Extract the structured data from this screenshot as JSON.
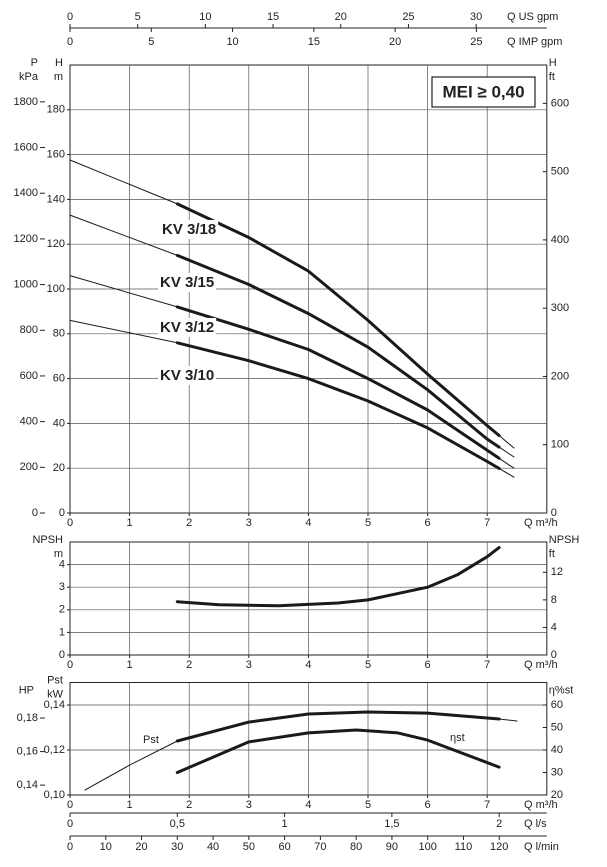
{
  "chart_data": [
    {
      "type": "line",
      "x_label": "Q m³/h",
      "xlim": [
        0,
        8
      ],
      "xticks": [
        0,
        1,
        2,
        3,
        4,
        5,
        6,
        7
      ],
      "y_label": [
        "H",
        "m"
      ],
      "ylim": [
        0,
        200
      ],
      "yticks": [
        0,
        20,
        40,
        60,
        80,
        100,
        120,
        140,
        160,
        180
      ],
      "outer_axis": {
        "label": [
          "P",
          "kPa"
        ],
        "ylim": [
          0,
          1961.3
        ],
        "yticks": [
          0,
          200,
          400,
          600,
          800,
          1000,
          1200,
          1400,
          1600,
          1800
        ]
      },
      "y2_label": [
        "H",
        "ft"
      ],
      "y2lim": [
        0,
        656.2
      ],
      "y2ticks": [
        0,
        100,
        200,
        300,
        400,
        500,
        600
      ],
      "top_axes": [
        {
          "label": "Q US gpm",
          "xlim": [
            0,
            35.22
          ],
          "xticks": [
            0,
            5,
            10,
            15,
            20,
            25,
            30
          ]
        },
        {
          "label": "Q IMP gpm",
          "xlim": [
            0,
            29.33
          ],
          "xticks": [
            0,
            5,
            10,
            15,
            20,
            25
          ]
        }
      ],
      "annotation": "MEI ≥ 0,40",
      "grid": true,
      "series": [
        {
          "name": "KV 3/18",
          "color": "#1a1a1a",
          "x": [
            0,
            1.8,
            3,
            4,
            5,
            6,
            7,
            7.2,
            7.45
          ],
          "values": [
            157.6,
            138,
            123,
            108,
            86,
            62,
            39,
            34.6,
            29
          ]
        },
        {
          "name": "KV 3/15",
          "color": "#1a1a1a",
          "x": [
            0,
            1.8,
            3,
            4,
            5,
            6,
            7,
            7.2,
            7.45
          ],
          "values": [
            133,
            115,
            102,
            89,
            74,
            55,
            33,
            29.4,
            25
          ]
        },
        {
          "name": "KV 3/12",
          "color": "#1a1a1a",
          "x": [
            0,
            1.8,
            3,
            4,
            5,
            6,
            7,
            7.2,
            7.45
          ],
          "values": [
            106,
            92,
            82,
            73,
            60,
            46,
            28,
            24.4,
            20
          ]
        },
        {
          "name": "KV 3/10",
          "color": "#1a1a1a",
          "x": [
            0,
            1.8,
            3,
            4,
            5,
            6,
            7,
            7.2,
            7.45
          ],
          "values": [
            86,
            76,
            68,
            60,
            50,
            38,
            23,
            19.9,
            16
          ]
        }
      ]
    },
    {
      "type": "line",
      "x_label": "Q m³/h",
      "xlim": [
        0,
        8
      ],
      "xticks": [
        0,
        1,
        2,
        3,
        4,
        5,
        6,
        7
      ],
      "y_label": [
        "NPSH",
        "m"
      ],
      "ylim": [
        0,
        5
      ],
      "yticks": [
        0,
        1,
        2,
        3,
        4
      ],
      "y2_label": [
        "NPSH",
        "ft"
      ],
      "y2lim": [
        0,
        16.4
      ],
      "y2ticks": [
        0,
        4,
        8,
        12
      ],
      "grid": true,
      "series": [
        {
          "color": "#1a1a1a",
          "x": [
            1.8,
            2.5,
            3.5,
            4.5,
            5,
            6,
            6.5,
            7,
            7.2
          ],
          "values": [
            2.36,
            2.22,
            2.18,
            2.3,
            2.44,
            3.0,
            3.55,
            4.35,
            4.75
          ]
        }
      ]
    },
    {
      "type": "line",
      "x_label": "Q m³/h",
      "xlim": [
        0,
        8
      ],
      "xticks": [
        0,
        1,
        2,
        3,
        4,
        5,
        6,
        7
      ],
      "y_label": [
        "Pst",
        "kW"
      ],
      "ylim": [
        0.1,
        0.15
      ],
      "yticks": [
        {
          "value": 0.1,
          "label": "0,10"
        },
        {
          "value": 0.12,
          "label": "0,12"
        },
        {
          "value": 0.14,
          "label": "0,14"
        }
      ],
      "outer_axis": {
        "label": "HP",
        "ylim": [
          0.1341,
          0.2012
        ],
        "yticks": [
          {
            "value": 0.14,
            "label": "0,14"
          },
          {
            "value": 0.16,
            "label": "0,16"
          },
          {
            "value": 0.18,
            "label": "0,18"
          }
        ]
      },
      "y2_label": "η%st",
      "y2lim": [
        20,
        70
      ],
      "y2ticks": [
        20,
        30,
        40,
        50,
        60
      ],
      "grid": true,
      "bottom_axes": [
        {
          "label": "Q l/s",
          "xlim": [
            0,
            2.222
          ],
          "xticks": [
            0,
            {
              "value": 0.5,
              "label": "0,5"
            },
            1,
            {
              "value": 1.5,
              "label": "1,5"
            },
            2
          ]
        },
        {
          "label": "Q l/min",
          "xlim": [
            0,
            133.3
          ],
          "xticks": [
            0,
            10,
            20,
            30,
            40,
            50,
            60,
            70,
            80,
            90,
            100,
            110,
            120
          ]
        }
      ],
      "series": [
        {
          "name": "Pst",
          "color": "#1a1a1a",
          "x": [
            0.25,
            1,
            1.8,
            3,
            4,
            5,
            6,
            7,
            7.2,
            7.5
          ],
          "values": [
            0.1022,
            0.1133,
            0.124,
            0.1324,
            0.136,
            0.1369,
            0.1364,
            0.1342,
            0.1338,
            0.1329
          ]
        },
        {
          "name": "ηst",
          "color": "#1a1a1a",
          "axis": "y2",
          "x": [
            1.8,
            3,
            4,
            4.8,
            5.5,
            6,
            7.2
          ],
          "values": [
            30,
            43.6,
            47.6,
            48.9,
            47.6,
            44.4,
            32.4
          ]
        }
      ]
    }
  ]
}
